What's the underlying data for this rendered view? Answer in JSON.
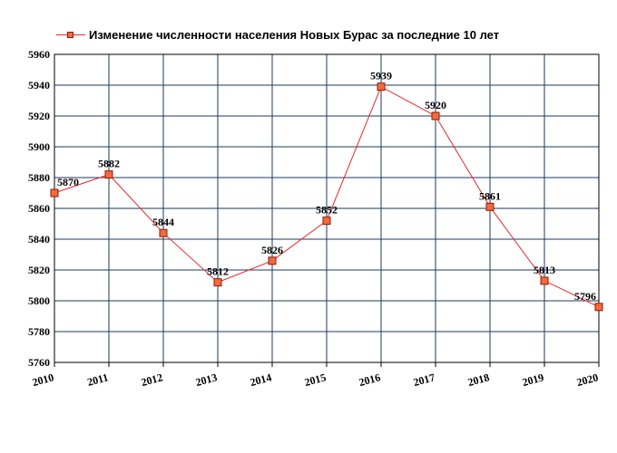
{
  "chart_data": {
    "type": "line",
    "title": "",
    "xlabel": "",
    "ylabel": "",
    "x": [
      "2010",
      "2011",
      "2012",
      "2013",
      "2014",
      "2015",
      "2016",
      "2017",
      "2018",
      "2019",
      "2020"
    ],
    "series": [
      {
        "name": "Изменение численности населения Новых Бурас за последние 10 лет",
        "values": [
          5870,
          5882,
          5844,
          5812,
          5826,
          5852,
          5939,
          5920,
          5861,
          5813,
          5796
        ]
      }
    ],
    "y_ticks": [
      "5760",
      "5780",
      "5800",
      "5820",
      "5840",
      "5860",
      "5880",
      "5900",
      "5920",
      "5940",
      "5960"
    ],
    "ylim": [
      5760,
      5960
    ],
    "grid": true,
    "legend_position": "top-left",
    "colors": {
      "line": "#e8262b",
      "marker_fill": "#f26a3d",
      "marker_stroke": "#8a1d08",
      "grid": "#1c3a5e",
      "axis": "#000000"
    }
  }
}
